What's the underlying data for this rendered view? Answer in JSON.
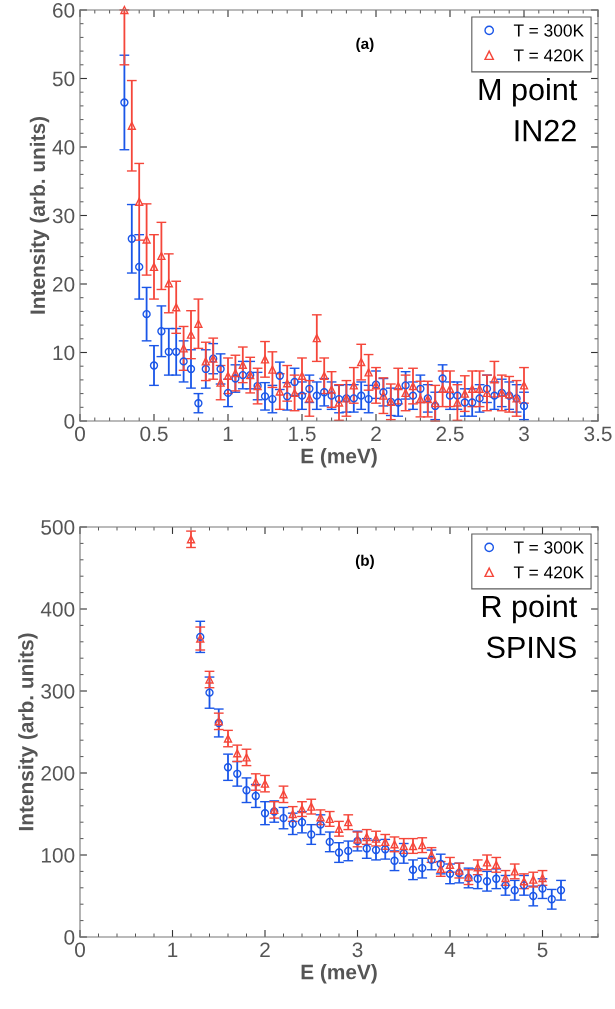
{
  "chart_data": [
    {
      "type": "scatter",
      "xlabel": "E (meV)",
      "ylabel": "Intensity (arb. units)",
      "xlim": [
        0,
        3.5
      ],
      "ylim": [
        0,
        60
      ],
      "xticks": [
        0,
        0.5,
        1,
        1.5,
        2,
        2.5,
        3,
        3.5
      ],
      "yticks": [
        0,
        10,
        20,
        30,
        40,
        50,
        60
      ],
      "legend": "top right",
      "grid": false,
      "annotations": [
        "(a)",
        "M point",
        "IN22"
      ],
      "series": [
        {
          "name": "T = 300K",
          "color": "#1a56e8",
          "marker": "circle",
          "x": [
            0.3,
            0.35,
            0.4,
            0.45,
            0.5,
            0.55,
            0.6,
            0.65,
            0.7,
            0.75,
            0.8,
            0.85,
            0.9,
            0.95,
            1.0,
            1.05,
            1.1,
            1.15,
            1.2,
            1.25,
            1.3,
            1.35,
            1.4,
            1.45,
            1.5,
            1.55,
            1.6,
            1.65,
            1.7,
            1.75,
            1.8,
            1.85,
            1.9,
            1.95,
            2.0,
            2.05,
            2.1,
            2.15,
            2.2,
            2.25,
            2.3,
            2.35,
            2.4,
            2.45,
            2.5,
            2.55,
            2.6,
            2.65,
            2.7,
            2.75,
            2.8,
            2.85,
            2.9,
            2.95,
            3.0
          ],
          "values": [
            46.5,
            26.6,
            22.5,
            15.6,
            8.1,
            13.1,
            10.1,
            10.1,
            8.7,
            7.6,
            2.6,
            7.6,
            9.1,
            7.6,
            4.1,
            6.2,
            6.7,
            6.7,
            5.1,
            3.6,
            3.2,
            6.6,
            3.6,
            5.7,
            3.7,
            4.7,
            3.7,
            4.2,
            3.7,
            3.2,
            3.3,
            3.3,
            3.7,
            3.2,
            5.3,
            4.2,
            2.8,
            2.7,
            5.2,
            3.7,
            4.7,
            3.3,
            2.2,
            6.2,
            3.7,
            3.7,
            2.7,
            2.7,
            3.3,
            4.7,
            3.7,
            4.1,
            3.7,
            3.3,
            2.2
          ],
          "errors": [
            6.9,
            5,
            4.7,
            3.9,
            2.9,
            3.7,
            3.4,
            3.4,
            3,
            2.8,
            1.4,
            2.8,
            2.2,
            2.2,
            2,
            2,
            2,
            2,
            2,
            2,
            2,
            2,
            2,
            2,
            2,
            2,
            2,
            2,
            2,
            2,
            2,
            2,
            2,
            2,
            2,
            2,
            2,
            2,
            2,
            2,
            2,
            2,
            2,
            2,
            2,
            2,
            2,
            2,
            2,
            2,
            2,
            2,
            2,
            2,
            2
          ]
        },
        {
          "name": "T = 420K",
          "color": "#f5463a",
          "marker": "triangle",
          "x": [
            0.3,
            0.35,
            0.4,
            0.45,
            0.5,
            0.55,
            0.6,
            0.65,
            0.7,
            0.75,
            0.8,
            0.85,
            0.9,
            0.95,
            1.0,
            1.05,
            1.1,
            1.15,
            1.2,
            1.25,
            1.3,
            1.35,
            1.4,
            1.45,
            1.5,
            1.55,
            1.6,
            1.65,
            1.7,
            1.75,
            1.8,
            1.85,
            1.9,
            1.95,
            2.0,
            2.05,
            2.1,
            2.15,
            2.2,
            2.25,
            2.3,
            2.35,
            2.4,
            2.45,
            2.5,
            2.55,
            2.6,
            2.65,
            2.7,
            2.75,
            2.8,
            2.85,
            2.9,
            2.95,
            3.0
          ],
          "values": [
            60,
            43.1,
            32.0,
            26.5,
            22.5,
            24.1,
            20.1,
            16.6,
            10.6,
            12.6,
            14.2,
            8.7,
            9.1,
            5.6,
            6.6,
            7.0,
            8.2,
            6.7,
            5.1,
            9.0,
            7.5,
            4.3,
            5.5,
            4.1,
            6.6,
            3.3,
            12.1,
            6.6,
            4.6,
            2.7,
            3.3,
            5.2,
            8.6,
            7.1,
            5.2,
            3.7,
            2.8,
            5.1,
            4.1,
            5.1,
            3.2,
            3.2,
            2.6,
            4.7,
            4.7,
            2.7,
            4.0,
            4.7,
            4.7,
            4.1,
            6.1,
            4.1,
            3.9,
            3.3,
            5.2
          ],
          "errors": [
            [
              52,
              60
            ],
            6.6,
            5.6,
            5.2,
            4.7,
            4.9,
            4.3,
            3.8,
            3.2,
            3.5,
            3.6,
            2.8,
            3,
            2.5,
            2.6,
            2.6,
            2.6,
            2.6,
            2.6,
            2.6,
            2.6,
            2.6,
            2.6,
            2.6,
            2.6,
            2.6,
            3.4,
            2.6,
            2.6,
            2.6,
            2.6,
            2.6,
            2.6,
            2.6,
            2.6,
            2.6,
            2.6,
            2.6,
            2.6,
            2.6,
            2.6,
            2.6,
            2.6,
            2.6,
            2.6,
            2.6,
            2.6,
            2.6,
            2.6,
            2.6,
            2.6,
            2.6,
            2.6,
            2.6,
            2.6
          ]
        }
      ]
    },
    {
      "type": "scatter",
      "xlabel": "E (meV)",
      "ylabel": "Intensity (arb. units)",
      "xlim": [
        0,
        5.6
      ],
      "ylim": [
        0,
        500
      ],
      "xticks": [
        0,
        1,
        2,
        3,
        4,
        5
      ],
      "yticks": [
        0,
        100,
        200,
        300,
        400,
        500
      ],
      "legend": "top right",
      "grid": false,
      "annotations": [
        "(b)",
        "R point",
        "SPINS"
      ],
      "series": [
        {
          "name": "T = 300K",
          "color": "#1a56e8",
          "marker": "circle",
          "x": [
            1.3,
            1.4,
            1.5,
            1.6,
            1.7,
            1.8,
            1.9,
            2.0,
            2.1,
            2.2,
            2.3,
            2.4,
            2.5,
            2.6,
            2.7,
            2.8,
            2.9,
            3.0,
            3.1,
            3.2,
            3.3,
            3.4,
            3.5,
            3.6,
            3.7,
            3.8,
            3.9,
            4.0,
            4.1,
            4.2,
            4.3,
            4.4,
            4.5,
            4.6,
            4.7,
            4.8,
            4.9,
            5.0,
            5.1,
            5.2
          ],
          "values": [
            366,
            298,
            261,
            207,
            199,
            179,
            172,
            151,
            153,
            145,
            138,
            140,
            125,
            137,
            116,
            103,
            105,
            117,
            108,
            106,
            107,
            93,
            102,
            82,
            84,
            94,
            89,
            77,
            78,
            72,
            71,
            68,
            71,
            63,
            57,
            63,
            50,
            59,
            46,
            57
          ],
          "errors": [
            19,
            19,
            17,
            16,
            15,
            15,
            14,
            14,
            13,
            13,
            13,
            13,
            12,
            12,
            12,
            12,
            12,
            12,
            12,
            12,
            12,
            12,
            12,
            12,
            12,
            12,
            12,
            12,
            12,
            12,
            12,
            12,
            12,
            12,
            12,
            12,
            12,
            12,
            12,
            12
          ]
        },
        {
          "name": "T = 420K",
          "color": "#f5463a",
          "marker": "triangle",
          "x": [
            1.2,
            1.3,
            1.4,
            1.5,
            1.6,
            1.7,
            1.8,
            1.9,
            2.0,
            2.1,
            2.2,
            2.3,
            2.4,
            2.5,
            2.6,
            2.7,
            2.8,
            2.9,
            3.0,
            3.1,
            3.2,
            3.3,
            3.4,
            3.5,
            3.6,
            3.7,
            3.8,
            3.9,
            4.0,
            4.1,
            4.2,
            4.3,
            4.4,
            4.5,
            4.6,
            4.7,
            4.8,
            4.9,
            5.0
          ],
          "values": [
            485,
            364,
            314,
            263,
            242,
            224,
            219,
            189,
            187,
            155,
            174,
            150,
            156,
            159,
            146,
            144,
            132,
            140,
            119,
            122,
            120,
            116,
            113,
            111,
            111,
            112,
            100,
            83,
            88,
            81,
            73,
            85,
            91,
            88,
            72,
            80,
            68,
            70,
            72
          ],
          "errors": [
            10,
            14,
            10,
            10,
            10,
            10,
            10,
            10,
            10,
            10,
            10,
            9,
            9,
            9,
            9,
            9,
            9,
            9,
            9,
            9,
            9,
            9,
            9,
            9,
            9,
            9,
            9,
            9,
            9,
            9,
            9,
            9,
            9,
            9,
            9,
            9,
            9,
            9,
            9
          ]
        }
      ]
    }
  ]
}
